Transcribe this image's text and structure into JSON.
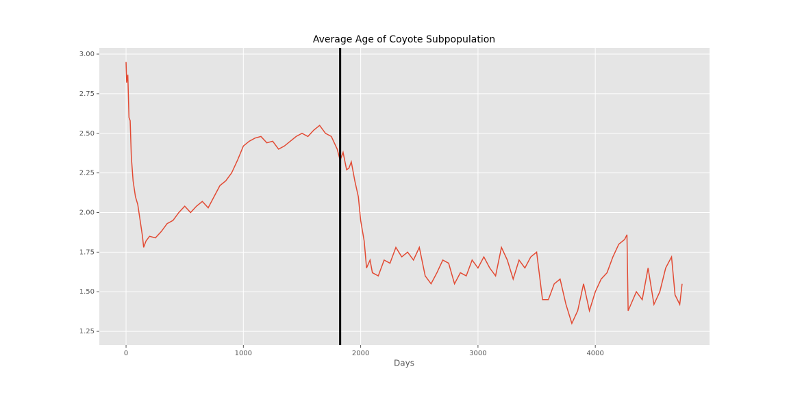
{
  "chart_data": {
    "type": "line",
    "title": "Average Age of Coyote Subpopulation",
    "xlabel": "Days",
    "x": [
      0,
      5,
      15,
      25,
      35,
      45,
      60,
      80,
      100,
      120,
      140,
      150,
      170,
      200,
      250,
      300,
      350,
      400,
      450,
      500,
      550,
      600,
      650,
      700,
      750,
      800,
      850,
      900,
      950,
      1000,
      1050,
      1100,
      1150,
      1200,
      1250,
      1300,
      1350,
      1400,
      1450,
      1500,
      1550,
      1600,
      1650,
      1700,
      1750,
      1800,
      1825,
      1850,
      1880,
      1900,
      1920,
      1950,
      1980,
      2000,
      2030,
      2050,
      2080,
      2100,
      2150,
      2200,
      2250,
      2300,
      2350,
      2400,
      2450,
      2500,
      2550,
      2600,
      2650,
      2700,
      2750,
      2800,
      2850,
      2900,
      2950,
      3000,
      3050,
      3100,
      3150,
      3200,
      3250,
      3300,
      3350,
      3400,
      3450,
      3500,
      3550,
      3600,
      3650,
      3700,
      3750,
      3800,
      3850,
      3900,
      3950,
      4000,
      4050,
      4100,
      4150,
      4200,
      4250,
      4270,
      4280,
      4350,
      4400,
      4450,
      4500,
      4550,
      4600,
      4650,
      4680,
      4720,
      4740
    ],
    "series": [
      {
        "color": "#e24a33",
        "values": [
          2.95,
          2.82,
          2.87,
          2.6,
          2.58,
          2.35,
          2.2,
          2.1,
          2.05,
          1.95,
          1.85,
          1.78,
          1.82,
          1.85,
          1.84,
          1.88,
          1.93,
          1.95,
          2.0,
          2.04,
          2.0,
          2.04,
          2.07,
          2.03,
          2.1,
          2.17,
          2.2,
          2.25,
          2.33,
          2.42,
          2.45,
          2.47,
          2.48,
          2.44,
          2.45,
          2.4,
          2.42,
          2.45,
          2.48,
          2.5,
          2.48,
          2.52,
          2.55,
          2.5,
          2.48,
          2.4,
          2.33,
          2.38,
          2.27,
          2.28,
          2.32,
          2.2,
          2.1,
          1.95,
          1.82,
          1.65,
          1.7,
          1.62,
          1.6,
          1.7,
          1.68,
          1.78,
          1.72,
          1.75,
          1.7,
          1.78,
          1.6,
          1.55,
          1.62,
          1.7,
          1.68,
          1.55,
          1.62,
          1.6,
          1.7,
          1.65,
          1.72,
          1.65,
          1.6,
          1.78,
          1.7,
          1.58,
          1.7,
          1.65,
          1.72,
          1.75,
          1.45,
          1.45,
          1.55,
          1.58,
          1.42,
          1.3,
          1.38,
          1.55,
          1.38,
          1.5,
          1.58,
          1.62,
          1.72,
          1.8,
          1.83,
          1.86,
          1.38,
          1.5,
          1.45,
          1.65,
          1.42,
          1.5,
          1.65,
          1.72,
          1.48,
          1.42,
          1.55
        ]
      }
    ],
    "vline": 1825,
    "vline_color": "#000000",
    "xlim": [
      -228,
      4974
    ],
    "ylim": [
      1.164,
      3.039
    ],
    "xticks": [
      0,
      1000,
      2000,
      3000,
      4000
    ],
    "yticks": [
      {
        "value": 1.25,
        "label": "1.25"
      },
      {
        "value": 1.5,
        "label": "1.50"
      },
      {
        "value": 1.75,
        "label": "1.75"
      },
      {
        "value": 2,
        "label": "2.00"
      },
      {
        "value": 2.25,
        "label": "2.25"
      },
      {
        "value": 2.5,
        "label": "2.50"
      },
      {
        "value": 2.75,
        "label": "2.75"
      },
      {
        "value": 3,
        "label": "3.00"
      }
    ],
    "grid": true
  }
}
